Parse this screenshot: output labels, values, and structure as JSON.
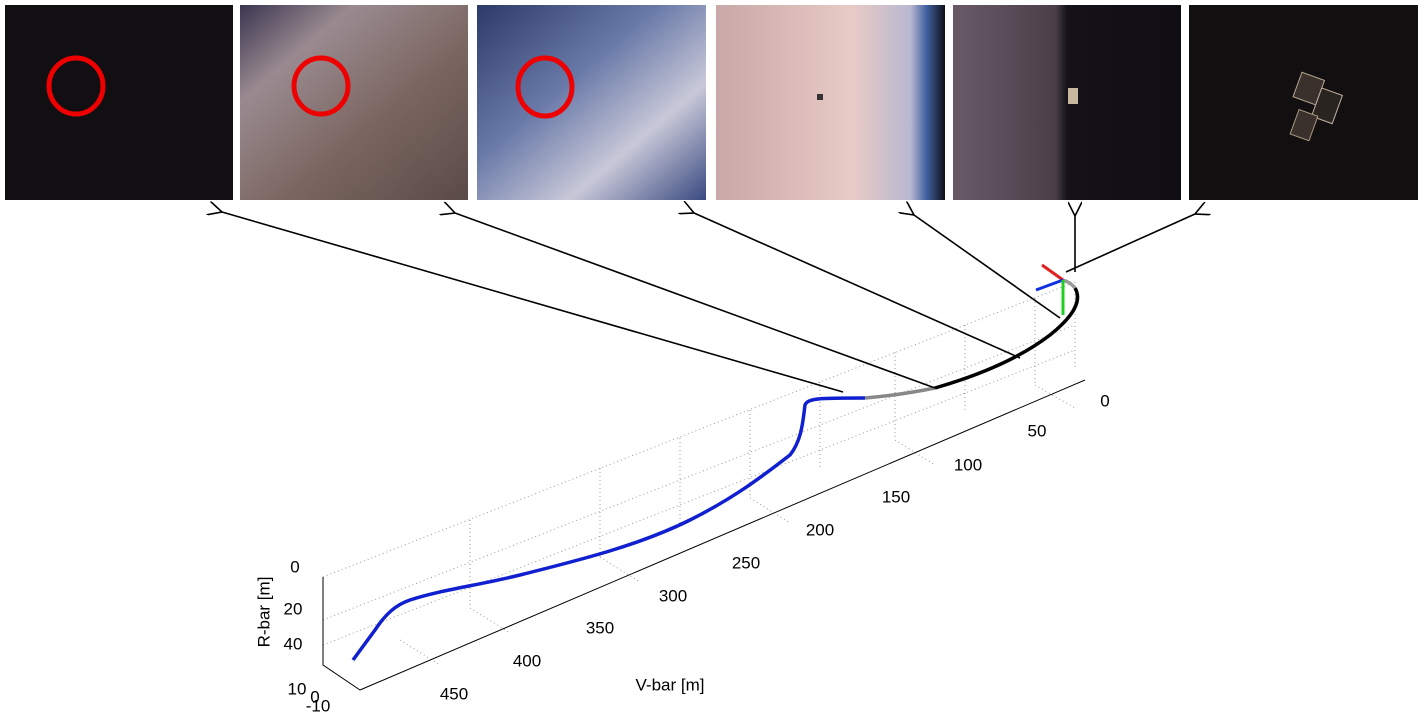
{
  "axes": {
    "r_label": "R-bar [m]",
    "v_label": "V-bar [m]",
    "v_ticks": [
      "0",
      "50",
      "100",
      "150",
      "200",
      "250",
      "300",
      "350",
      "400",
      "450"
    ],
    "r_ticks": [
      "0",
      "20",
      "40"
    ],
    "w_ticks": [
      "10",
      "0",
      "-10"
    ]
  }
}
